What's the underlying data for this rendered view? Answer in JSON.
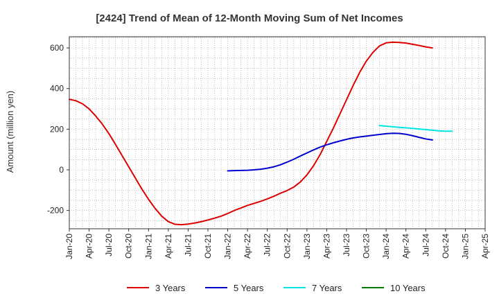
{
  "chart_data": {
    "type": "line",
    "title": "[2424]  Trend of Mean of 12-Month Moving Sum of Net Incomes",
    "ylabel": "Amount (million yen)",
    "xlabel": "",
    "x_ticks": [
      "Jan-20",
      "Apr-20",
      "Jul-20",
      "Oct-20",
      "Jan-21",
      "Apr-21",
      "Jul-21",
      "Oct-21",
      "Jan-22",
      "Apr-22",
      "Jul-22",
      "Oct-22",
      "Jan-23",
      "Apr-23",
      "Jul-23",
      "Oct-23",
      "Jan-24",
      "Apr-24",
      "Jul-24",
      "Oct-24",
      "Jan-25",
      "Apr-25"
    ],
    "y_ticks": [
      -200,
      0,
      200,
      400,
      600
    ],
    "ylim": [
      -290,
      655
    ],
    "xlim": [
      0,
      63
    ],
    "grid": true,
    "legend_position": "bottom",
    "series": [
      {
        "name": "3 Years",
        "color": "#dd0000",
        "x": [
          0,
          1,
          2,
          3,
          4,
          5,
          6,
          7,
          8,
          9,
          10,
          11,
          12,
          13,
          14,
          15,
          16,
          17,
          18,
          19,
          20,
          21,
          22,
          23,
          24,
          25,
          26,
          27,
          28,
          29,
          30,
          31,
          32,
          33,
          34,
          35,
          36,
          37,
          38,
          39,
          40,
          41,
          42,
          43,
          44,
          45,
          46,
          47,
          48,
          49,
          50,
          51,
          52,
          53,
          54,
          55,
          56,
          57,
          58,
          59,
          60
        ],
        "y": [
          347,
          340,
          325,
          300,
          265,
          225,
          178,
          125,
          70,
          15,
          -40,
          -95,
          -145,
          -190,
          -228,
          -255,
          -268,
          -270,
          -267,
          -262,
          -255,
          -247,
          -238,
          -228,
          -215,
          -200,
          -188,
          -175,
          -165,
          -155,
          -143,
          -130,
          -115,
          -102,
          -85,
          -60,
          -25,
          20,
          75,
          140,
          205,
          275,
          345,
          415,
          480,
          535,
          578,
          610,
          625,
          628,
          627,
          624,
          618,
          612,
          605,
          600,
          null,
          null,
          null,
          null,
          null
        ]
      },
      {
        "name": "5 Years",
        "color": "#0000cc",
        "x": [
          24,
          25,
          26,
          27,
          28,
          29,
          30,
          31,
          32,
          33,
          34,
          35,
          36,
          37,
          38,
          39,
          40,
          41,
          42,
          43,
          44,
          45,
          46,
          47,
          48,
          49,
          50,
          51,
          52,
          53,
          54,
          55,
          56,
          57,
          58,
          59,
          60
        ],
        "y": [
          -5,
          -4,
          -3,
          -2,
          0,
          3,
          8,
          15,
          25,
          38,
          52,
          68,
          83,
          98,
          112,
          123,
          133,
          142,
          150,
          157,
          162,
          166,
          170,
          174,
          178,
          180,
          179,
          175,
          168,
          160,
          152,
          147,
          null,
          null,
          null,
          null,
          null
        ]
      },
      {
        "name": "7 Years",
        "color": "#00e5e5",
        "x": [
          47,
          48,
          49,
          50,
          51,
          52,
          53,
          54,
          55,
          56,
          57,
          58,
          59,
          60
        ],
        "y": [
          218,
          215,
          212,
          209,
          207,
          204,
          201,
          198,
          195,
          192,
          190,
          190,
          null,
          null
        ]
      },
      {
        "name": "10 Years",
        "color": "#007700",
        "x": [],
        "y": []
      }
    ]
  }
}
